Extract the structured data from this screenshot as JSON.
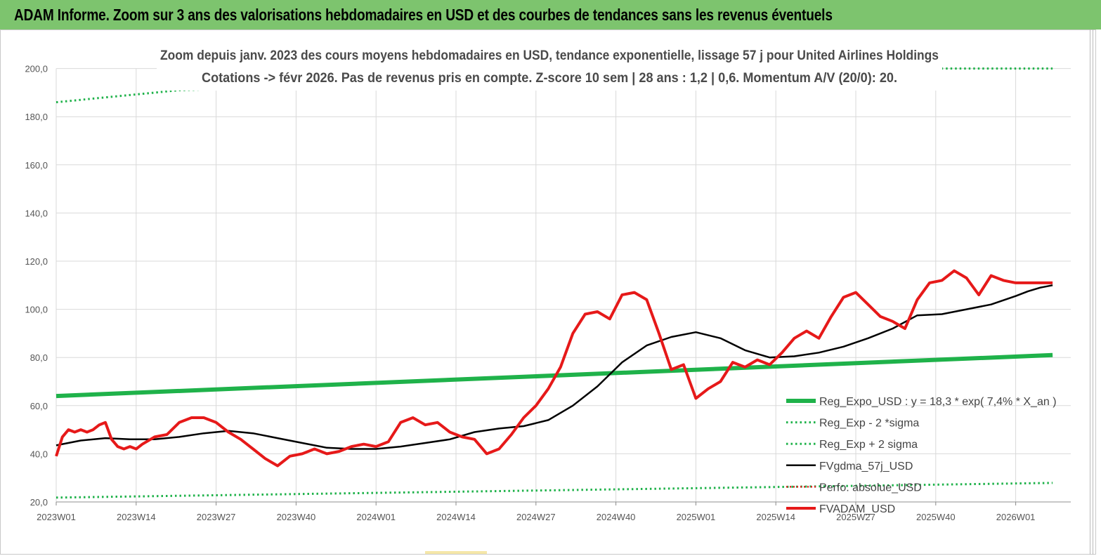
{
  "header": {
    "title": "ADAM Informe. Zoom sur 3 ans des valorisations hebdomadaires en USD et des courbes de tendances sans les revenus éventuels"
  },
  "chart_data": {
    "type": "line",
    "title": "Zoom depuis janv. 2023 des cours moyens hebdomadaires en USD, tendance exponentielle, lissage 57 j pour United Airlines Holdings",
    "subtitle": "Cotations -> févr 2026. Pas de revenus pris en compte. Z-score 10 sem | 28 ans : 1,2 | 0,6. Momentum A/V (20/0): 20.",
    "xlabel": "",
    "ylabel": "",
    "ylim": [
      20,
      200
    ],
    "yticks": [
      "20,0",
      "40,0",
      "60,0",
      "80,0",
      "100,0",
      "120,0",
      "140,0",
      "160,0",
      "180,0",
      "200,0"
    ],
    "xticks": [
      "2023W01",
      "2023W14",
      "2023W27",
      "2023W40",
      "2024W01",
      "2024W14",
      "2024W27",
      "2024W40",
      "2025W01",
      "2025W14",
      "2025W27",
      "2025W40",
      "2026W01"
    ],
    "grid": true,
    "legend_position": "bottom-right",
    "colors": {
      "reg_expo": "#1fb24a",
      "reg_minus": "#1fb24a",
      "reg_plus": "#1fb24a",
      "fvgdma": "#000000",
      "perfo": "#e02020",
      "fvadam": "#e61919"
    },
    "series": [
      {
        "key": "reg_expo",
        "name": "Reg_Expo_USD : y = 18,3 * exp( 7,4% *  X_an )",
        "style": "thick",
        "x": [
          0,
          162
        ],
        "values": [
          64.0,
          81.0
        ]
      },
      {
        "key": "reg_minus",
        "name": "Reg_Exp - 2 *sigma",
        "style": "dotted",
        "x": [
          0,
          162
        ],
        "values": [
          21.8,
          27.9
        ]
      },
      {
        "key": "reg_plus",
        "name": "Reg_Exp + 2 sigma",
        "style": "dotted",
        "x": [
          0,
          20,
          140,
          162
        ],
        "values": [
          186.0,
          191.0,
          200.0,
          200.0
        ]
      },
      {
        "key": "fvgdma",
        "name": "FVgdma_57j_USD",
        "style": "solid",
        "x": [
          0,
          4,
          8,
          12,
          16,
          20,
          24,
          28,
          32,
          36,
          40,
          44,
          48,
          52,
          56,
          60,
          64,
          68,
          72,
          76,
          80,
          84,
          88,
          92,
          96,
          100,
          104,
          108,
          112,
          116,
          120,
          124,
          128,
          132,
          136,
          140,
          144,
          148,
          152,
          156,
          158,
          160,
          162
        ],
        "values": [
          43.5,
          45.5,
          46.5,
          46.0,
          46.0,
          47.0,
          48.5,
          49.5,
          48.5,
          46.5,
          44.5,
          42.5,
          42.0,
          42.0,
          43.0,
          44.5,
          46.0,
          49.0,
          50.5,
          51.5,
          54.0,
          60.0,
          68.0,
          78.0,
          85.0,
          88.5,
          90.5,
          88.0,
          83.0,
          80.0,
          80.5,
          82.0,
          84.5,
          88.0,
          92.0,
          97.5,
          98.0,
          100.0,
          102.0,
          105.5,
          107.5,
          109.0,
          110.0
        ]
      },
      {
        "key": "perfo",
        "name": "Perfo. absolue_USD",
        "style": "dotted-red",
        "x": [],
        "values": []
      },
      {
        "key": "fvadam",
        "name": "FVADAM_USD",
        "style": "thick",
        "x": [
          0,
          1,
          2,
          3,
          4,
          5,
          6,
          7,
          8,
          9,
          10,
          11,
          12,
          13,
          14,
          16,
          18,
          20,
          22,
          24,
          26,
          28,
          30,
          32,
          34,
          36,
          38,
          40,
          42,
          44,
          46,
          48,
          50,
          52,
          54,
          56,
          58,
          60,
          62,
          64,
          66,
          68,
          70,
          72,
          74,
          76,
          78,
          80,
          82,
          84,
          86,
          88,
          90,
          92,
          94,
          96,
          98,
          100,
          102,
          104,
          106,
          108,
          110,
          112,
          114,
          116,
          118,
          120,
          122,
          124,
          126,
          128,
          130,
          132,
          134,
          136,
          138,
          140,
          142,
          144,
          146,
          148,
          150,
          152,
          154,
          156,
          158,
          160,
          162
        ],
        "values": [
          39,
          47,
          50,
          49,
          50,
          49,
          50,
          52,
          53,
          46,
          43,
          42,
          43,
          42,
          44,
          47,
          48,
          53,
          55,
          55,
          53,
          49,
          46,
          42,
          38,
          35,
          39,
          40,
          42,
          40,
          41,
          43,
          44,
          43,
          45,
          53,
          55,
          52,
          53,
          49,
          47,
          46,
          40,
          42,
          48,
          55,
          60,
          67,
          76,
          90,
          98,
          99,
          96,
          106,
          107,
          104,
          90,
          75,
          77,
          63,
          67,
          70,
          78,
          76,
          79,
          77,
          82,
          88,
          91,
          88,
          97,
          105,
          107,
          102,
          97,
          95,
          92,
          104,
          111,
          112,
          116,
          113,
          106,
          114,
          112,
          111,
          111,
          111,
          111
        ]
      }
    ]
  }
}
